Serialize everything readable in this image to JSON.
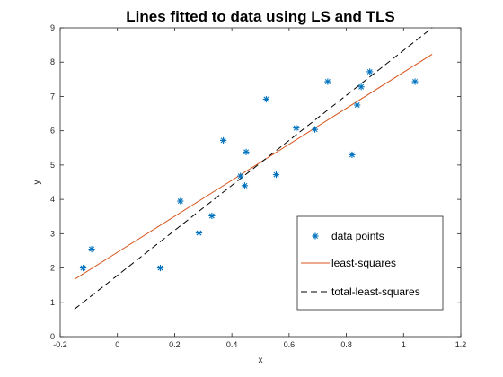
{
  "chart_data": {
    "type": "scatter",
    "title": "Lines fitted to data using LS and TLS",
    "xlabel": "x",
    "ylabel": "y",
    "xlim": [
      -0.2,
      1.2
    ],
    "ylim": [
      0,
      9
    ],
    "xticks": [
      "-0.2",
      "0",
      "0.2",
      "0.4",
      "0.6",
      "0.8",
      "1",
      "1.2"
    ],
    "yticks": [
      "0",
      "1",
      "2",
      "3",
      "4",
      "5",
      "6",
      "7",
      "8",
      "9"
    ],
    "grid": false,
    "legend_position": "bottom-right",
    "series": [
      {
        "name": "data points",
        "kind": "scatter",
        "marker": "asterisk",
        "color": "#0072BD",
        "points": [
          [
            -0.12,
            2.0
          ],
          [
            -0.09,
            2.55
          ],
          [
            0.15,
            2.0
          ],
          [
            0.22,
            3.95
          ],
          [
            0.285,
            3.02
          ],
          [
            0.33,
            3.52
          ],
          [
            0.37,
            5.72
          ],
          [
            0.43,
            4.68
          ],
          [
            0.445,
            4.4
          ],
          [
            0.45,
            5.38
          ],
          [
            0.52,
            6.92
          ],
          [
            0.555,
            4.72
          ],
          [
            0.625,
            6.08
          ],
          [
            0.69,
            6.04
          ],
          [
            0.735,
            7.43
          ],
          [
            0.82,
            5.3
          ],
          [
            0.838,
            6.75
          ],
          [
            0.852,
            7.28
          ],
          [
            0.882,
            7.72
          ],
          [
            1.04,
            7.43
          ]
        ]
      },
      {
        "name": "least-squares",
        "kind": "line",
        "dash": "solid",
        "color": "#D95319",
        "points": [
          [
            -0.15,
            1.67
          ],
          [
            1.1,
            8.23
          ]
        ]
      },
      {
        "name": "total-least-squares",
        "kind": "line",
        "dash": "dashed",
        "color": "#000000",
        "points": [
          [
            -0.15,
            0.8
          ],
          [
            1.1,
            9.0
          ]
        ]
      }
    ]
  }
}
